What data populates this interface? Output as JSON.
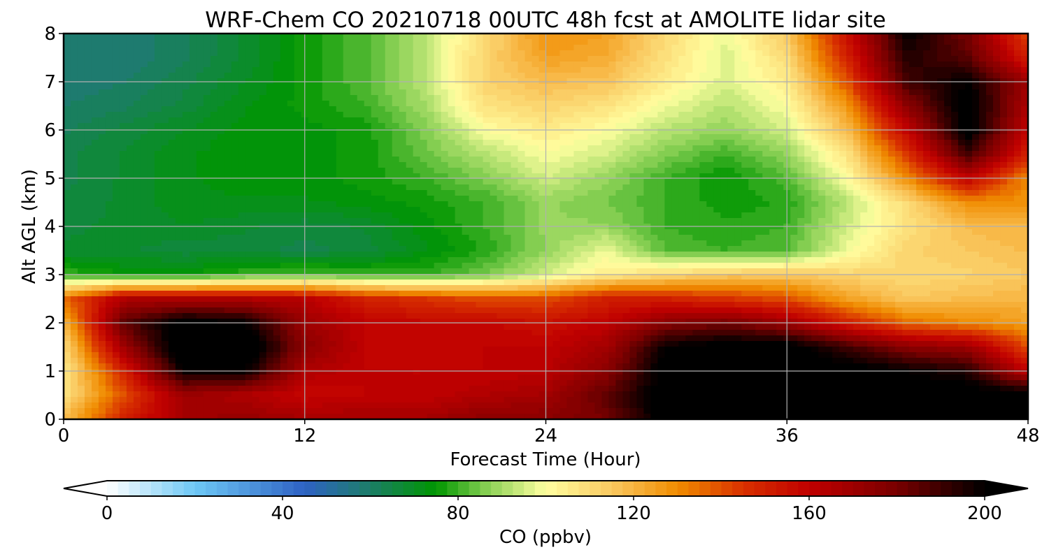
{
  "chart_data": {
    "type": "heatmap",
    "subtype": "filled-contour time-height cross section",
    "title": "WRF-Chem CO  20210718 00UTC 48h fcst at AMOLITE lidar site",
    "xlabel": "Forecast Time (Hour)",
    "ylabel": "Alt AGL (km)",
    "xlim": [
      0,
      48
    ],
    "ylim": [
      0,
      8
    ],
    "xticks": [
      0,
      12,
      24,
      36,
      48
    ],
    "yticks": [
      0,
      1,
      2,
      3,
      4,
      5,
      6,
      7,
      8
    ],
    "grid": true,
    "x": [
      0,
      3,
      6,
      9,
      12,
      15,
      18,
      21,
      24,
      27,
      30,
      33,
      36,
      39,
      42,
      45,
      48
    ],
    "y": [
      0,
      0.5,
      1,
      1.5,
      2,
      2.5,
      3,
      3.5,
      4,
      4.5,
      5,
      5.5,
      6,
      6.5,
      7,
      7.5,
      8
    ],
    "z": [
      [
        118,
        150,
        168,
        172,
        168,
        168,
        168,
        175,
        175,
        180,
        205,
        205,
        205,
        205,
        205,
        205,
        205
      ],
      [
        108,
        140,
        170,
        165,
        158,
        160,
        160,
        165,
        168,
        185,
        205,
        205,
        205,
        205,
        205,
        205,
        205
      ],
      [
        105,
        150,
        200,
        200,
        165,
        160,
        160,
        160,
        162,
        175,
        205,
        205,
        205,
        205,
        200,
        195,
        160
      ],
      [
        110,
        170,
        210,
        210,
        175,
        160,
        158,
        160,
        160,
        168,
        200,
        205,
        205,
        190,
        175,
        170,
        140
      ],
      [
        120,
        185,
        205,
        200,
        170,
        160,
        158,
        158,
        155,
        160,
        175,
        180,
        170,
        150,
        135,
        130,
        125
      ],
      [
        135,
        165,
        165,
        165,
        162,
        150,
        145,
        140,
        140,
        150,
        150,
        145,
        140,
        125,
        115,
        118,
        120
      ],
      [
        80,
        75,
        75,
        80,
        82,
        80,
        80,
        85,
        95,
        105,
        110,
        115,
        115,
        112,
        110,
        112,
        115
      ],
      [
        68,
        68,
        66,
        66,
        64,
        66,
        72,
        78,
        88,
        98,
        82,
        80,
        82,
        98,
        112,
        115,
        118
      ],
      [
        67,
        68,
        70,
        68,
        66,
        68,
        74,
        80,
        88,
        88,
        80,
        78,
        80,
        95,
        108,
        118,
        120
      ],
      [
        66,
        68,
        72,
        72,
        72,
        74,
        76,
        80,
        88,
        85,
        80,
        76,
        78,
        92,
        110,
        130,
        128
      ],
      [
        64,
        68,
        72,
        74,
        74,
        76,
        80,
        86,
        95,
        88,
        80,
        75,
        82,
        100,
        130,
        160,
        130
      ],
      [
        64,
        68,
        72,
        74,
        74,
        76,
        84,
        92,
        100,
        95,
        86,
        80,
        88,
        108,
        145,
        190,
        150
      ],
      [
        62,
        66,
        70,
        74,
        74,
        76,
        86,
        100,
        105,
        100,
        92,
        88,
        95,
        118,
        160,
        205,
        160
      ],
      [
        60,
        62,
        66,
        72,
        76,
        80,
        90,
        108,
        112,
        108,
        98,
        92,
        100,
        128,
        175,
        205,
        165
      ],
      [
        58,
        60,
        64,
        70,
        76,
        82,
        92,
        112,
        118,
        116,
        105,
        96,
        105,
        140,
        190,
        200,
        170
      ],
      [
        58,
        58,
        62,
        68,
        76,
        82,
        92,
        112,
        125,
        122,
        108,
        96,
        110,
        150,
        195,
        185,
        150
      ],
      [
        60,
        58,
        62,
        68,
        76,
        82,
        92,
        110,
        128,
        125,
        110,
        98,
        115,
        155,
        200,
        180,
        140
      ]
    ],
    "colorbar": {
      "label": "CO  (ppbv)",
      "vmin": 0,
      "vmax": 200,
      "level_step": 2.5,
      "extend": "both",
      "ticks": [
        0,
        40,
        80,
        120,
        160,
        200
      ],
      "orientation": "horizontal",
      "placement": "bottom"
    },
    "colors": {
      "stops": [
        [
          0,
          "#ffffff"
        ],
        [
          20,
          "#6ec8f5"
        ],
        [
          45,
          "#2e62c4"
        ],
        [
          58,
          "#1f7a74"
        ],
        [
          75,
          "#009600"
        ],
        [
          86,
          "#82cd50"
        ],
        [
          100,
          "#ffffa0"
        ],
        [
          115,
          "#fac860"
        ],
        [
          130,
          "#f08c00"
        ],
        [
          145,
          "#d83000"
        ],
        [
          160,
          "#c00000"
        ],
        [
          180,
          "#780000"
        ],
        [
          200,
          "#000000"
        ]
      ],
      "under": "#ffffff",
      "over": "#000000"
    }
  }
}
